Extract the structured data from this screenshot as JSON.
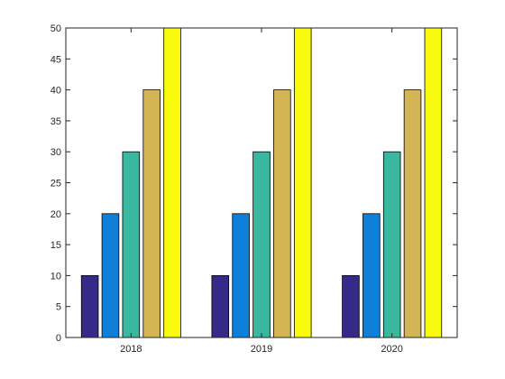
{
  "chart_data": {
    "type": "bar",
    "categories": [
      "2018",
      "2019",
      "2020"
    ],
    "series": [
      {
        "color": "#352a87",
        "values": [
          10,
          10,
          10
        ]
      },
      {
        "color": "#0f80d9",
        "values": [
          20,
          20,
          20
        ]
      },
      {
        "color": "#39b79f",
        "values": [
          30,
          30,
          30
        ]
      },
      {
        "color": "#d4b556",
        "values": [
          40,
          40,
          40
        ]
      },
      {
        "color": "#f9fb0e",
        "values": [
          50,
          50,
          50
        ]
      }
    ],
    "ylim": [
      0,
      50
    ],
    "yticks": [
      0,
      5,
      10,
      15,
      20,
      25,
      30,
      35,
      40,
      45,
      50
    ],
    "grid": false,
    "legend": "none"
  }
}
